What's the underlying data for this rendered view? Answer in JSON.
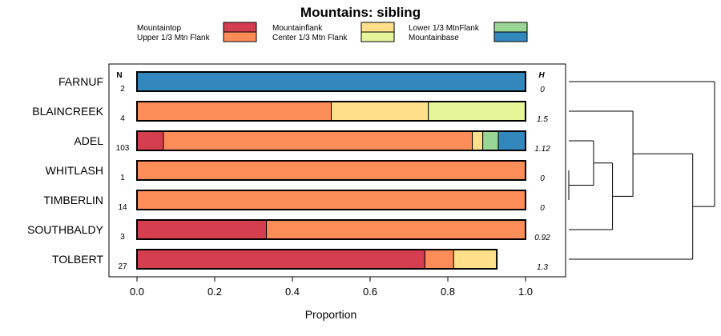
{
  "chart_data": {
    "type": "bar",
    "orientation": "horizontal",
    "stacked": true,
    "title": "Mountains: sibling",
    "xlabel": "Proportion",
    "ylabel": "",
    "xlim": [
      0,
      1
    ],
    "x_ticks": [
      "0.0",
      "0.2",
      "0.4",
      "0.6",
      "0.8",
      "1.0"
    ],
    "n_header": "N",
    "h_header": "H",
    "categories": [
      "FARNUF",
      "BLAINCREEK",
      "ADEL",
      "WHITLASH",
      "TIMBERLIN",
      "SOUTHBALDY",
      "TOLBERT"
    ],
    "n_values": [
      "2",
      "4",
      "103",
      "1",
      "14",
      "3",
      "27"
    ],
    "h_values": [
      "0",
      "1.5",
      "1.12",
      "0",
      "0",
      "0.92",
      "1.3"
    ],
    "series": [
      {
        "name": "Mountaintop",
        "color": "#d53e4f",
        "values": [
          0,
          0,
          0.068,
          0,
          0,
          0.333,
          0.741
        ]
      },
      {
        "name": "Upper 1/3 Mtn Flank",
        "color": "#fc8d59",
        "values": [
          0,
          0.5,
          0.795,
          1,
          1,
          0.667,
          0.074
        ]
      },
      {
        "name": "Mountainflank",
        "color": "#fee08b",
        "values": [
          0,
          0.25,
          0.027,
          0,
          0,
          0,
          0.111
        ]
      },
      {
        "name": "Center 1/3 Mtn Flank",
        "color": "#e6f598",
        "values": [
          0,
          0.25,
          0,
          0,
          0,
          0,
          0
        ]
      },
      {
        "name": "Lower 1/3 MtnFlank",
        "color": "#99d594",
        "values": [
          0,
          0,
          0.04,
          0,
          0,
          0,
          0
        ]
      },
      {
        "name": "Mountainbase",
        "color": "#3288bd",
        "values": [
          1,
          0,
          0.07,
          0,
          0,
          0,
          0
        ]
      }
    ],
    "legend": {
      "placement": "top",
      "rows": [
        [
          "Mountaintop",
          "Mountainflank",
          "Lower 1/3 MtnFlank"
        ],
        [
          "Upper 1/3 Mtn Flank",
          "Center 1/3 Mtn Flank",
          "Mountainbase"
        ]
      ]
    },
    "dendrogram": {
      "placement": "right",
      "leaf_order": [
        "FARNUF",
        "BLAINCREEK",
        "ADEL",
        "WHITLASH",
        "TIMBERLIN",
        "SOUTHBALDY",
        "TOLBERT"
      ],
      "merges": [
        {
          "left": [
            "WHITLASH"
          ],
          "right": [
            "TIMBERLIN"
          ],
          "height": 0.0
        },
        {
          "left": [
            "ADEL"
          ],
          "right": [
            "WHITLASH",
            "TIMBERLIN"
          ],
          "height": 0.17
        },
        {
          "left": [
            "ADEL",
            "WHITLASH",
            "TIMBERLIN"
          ],
          "right": [
            "SOUTHBALDY"
          ],
          "height": 0.3
        },
        {
          "left": [
            "BLAINCREEK"
          ],
          "right": [
            "ADEL",
            "WHITLASH",
            "TIMBERLIN",
            "SOUTHBALDY"
          ],
          "height": 0.44
        },
        {
          "left": [
            "BLAINCREEK",
            "ADEL",
            "WHITLASH",
            "TIMBERLIN",
            "SOUTHBALDY"
          ],
          "right": [
            "TOLBERT"
          ],
          "height": 0.85
        },
        {
          "left": [
            "FARNUF"
          ],
          "right": [
            "BLAINCREEK",
            "ADEL",
            "WHITLASH",
            "TIMBERLIN",
            "SOUTHBALDY",
            "TOLBERT"
          ],
          "height": 1.0
        }
      ]
    }
  }
}
